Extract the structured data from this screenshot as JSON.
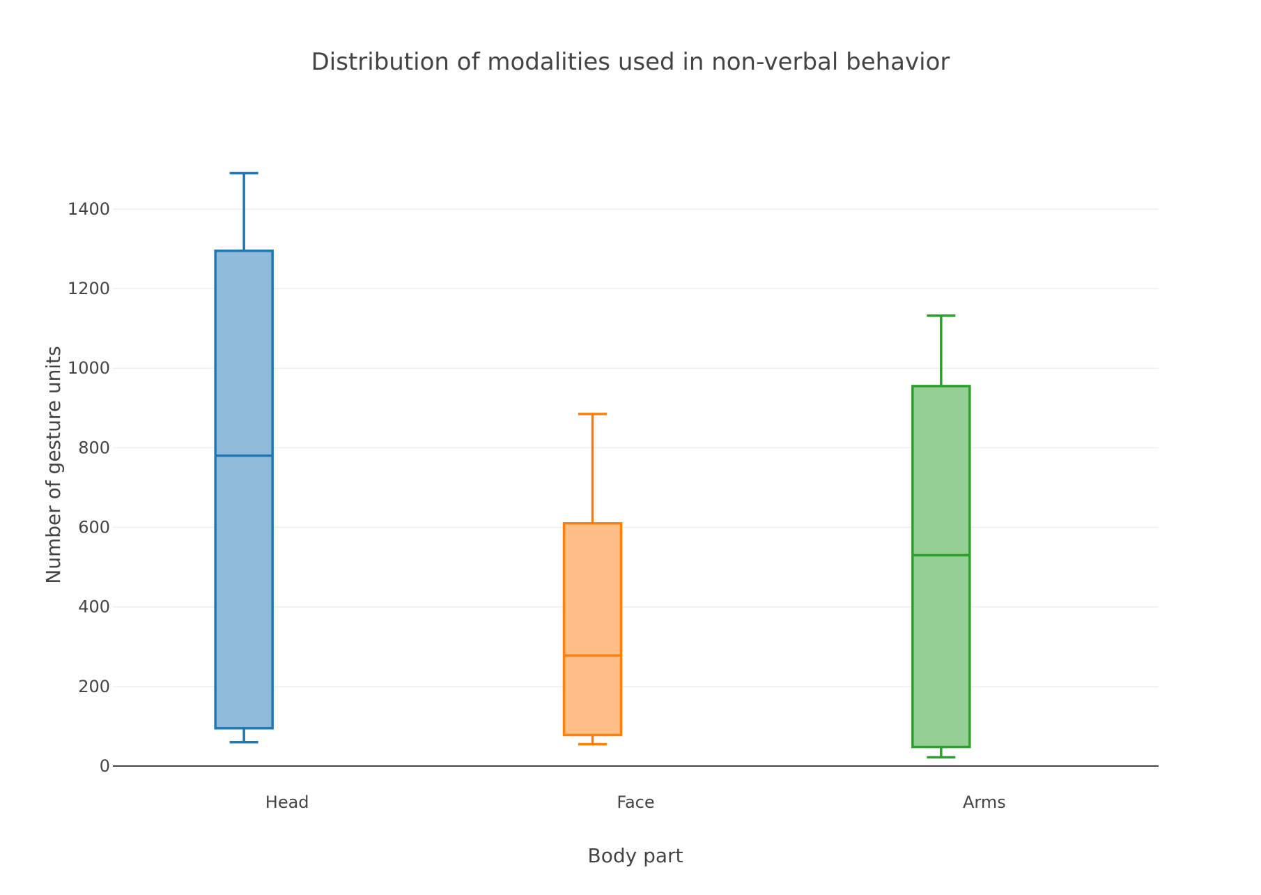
{
  "chart_data": {
    "type": "box",
    "title": "Distribution of modalities used in non-verbal behavior",
    "xlabel": "Body part",
    "ylabel": "Number of gesture units",
    "categories": [
      "Head",
      "Face",
      "Arms"
    ],
    "ylim": [
      0,
      1640
    ],
    "yticks": [
      0,
      200,
      400,
      600,
      800,
      1000,
      1200,
      1400
    ],
    "grid": true,
    "series": [
      {
        "category": "Head",
        "min": 60,
        "q1": 95,
        "median": 780,
        "q3": 1295,
        "max": 1490,
        "color": "#1f77b4",
        "fill": "#90bada"
      },
      {
        "category": "Face",
        "min": 55,
        "q1": 78,
        "median": 278,
        "q3": 610,
        "max": 885,
        "color": "#ff7f0e",
        "fill": "#ffbf86"
      },
      {
        "category": "Arms",
        "min": 22,
        "q1": 48,
        "median": 530,
        "q3": 955,
        "max": 1132,
        "color": "#2ca02c",
        "fill": "#95cf95"
      }
    ]
  }
}
